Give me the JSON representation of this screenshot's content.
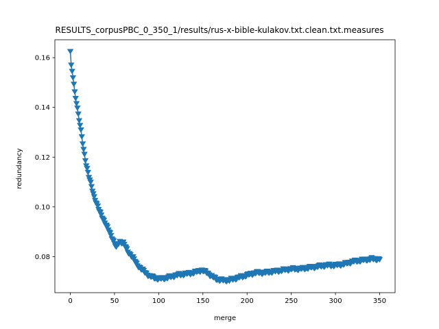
{
  "chart_data": {
    "type": "line",
    "title": "RESULTS_corpusPBC_0_350_1/results/rus-x-bible-kulakov.txt.clean.txt.measures",
    "xlabel": "merge",
    "ylabel": "redundancy",
    "xlim": [
      -17.5,
      367.5
    ],
    "ylim": [
      0.0655,
      0.1672
    ],
    "xticks": [
      0,
      50,
      100,
      150,
      200,
      250,
      300,
      350
    ],
    "yticks": [
      0.08,
      0.1,
      0.12,
      0.14,
      0.16
    ],
    "xtick_labels": [
      "0",
      "50",
      "100",
      "150",
      "200",
      "250",
      "300",
      "350"
    ],
    "ytick_labels": [
      "0.08",
      "0.10",
      "0.12",
      "0.14",
      "0.16"
    ],
    "grid": false,
    "marker": "triangle-down",
    "color": "#1f77b4",
    "series": [
      {
        "anchors_x": [
          0,
          1,
          3,
          5,
          7,
          10,
          13,
          15,
          18,
          21,
          24,
          27,
          30,
          33,
          36,
          40,
          44,
          48,
          52,
          54,
          56,
          60,
          65,
          70,
          75,
          80,
          85,
          90,
          95,
          100,
          110,
          120,
          130,
          140,
          148,
          155,
          160,
          165,
          170,
          180,
          190,
          200,
          210,
          220,
          230,
          240,
          250,
          260,
          270,
          280,
          290,
          300,
          310,
          320,
          330,
          340,
          350
        ],
        "anchors_y": [
          0.1625,
          0.157,
          0.152,
          0.146,
          0.142,
          0.135,
          0.128,
          0.123,
          0.117,
          0.112,
          0.108,
          0.104,
          0.101,
          0.098,
          0.096,
          0.093,
          0.09,
          0.087,
          0.0835,
          0.085,
          0.086,
          0.0855,
          0.082,
          0.08,
          0.077,
          0.075,
          0.0735,
          0.072,
          0.0715,
          0.071,
          0.0715,
          0.0725,
          0.073,
          0.0735,
          0.0745,
          0.0735,
          0.072,
          0.071,
          0.0705,
          0.0705,
          0.0715,
          0.0725,
          0.0735,
          0.0735,
          0.074,
          0.0745,
          0.075,
          0.075,
          0.0755,
          0.076,
          0.0765,
          0.0765,
          0.077,
          0.078,
          0.0785,
          0.079,
          0.079
        ]
      }
    ]
  }
}
